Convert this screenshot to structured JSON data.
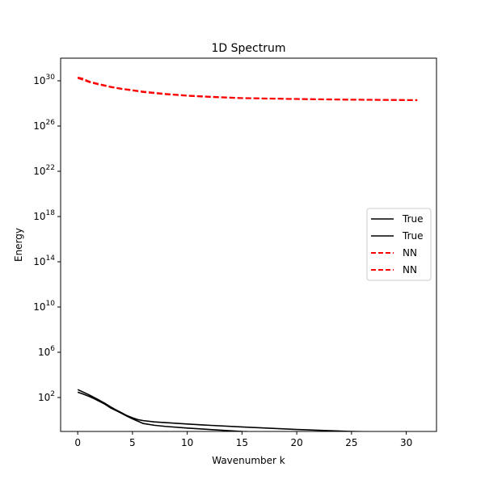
{
  "chart_data": {
    "type": "line",
    "title": "1D Spectrum",
    "xlabel": "Wavenumber k",
    "ylabel": "Energy",
    "xlim": [
      -1.56,
      32.76
    ],
    "ylim": [
      0.1,
      1e+32
    ],
    "yscale": "log",
    "x_ticks": [
      0,
      5,
      10,
      15,
      20,
      25,
      30
    ],
    "y_ticks": [
      {
        "value": 100.0,
        "base": "10",
        "exp": "2"
      },
      {
        "value": 1000000.0,
        "base": "10",
        "exp": "6"
      },
      {
        "value": 10000000000.0,
        "base": "10",
        "exp": "10"
      },
      {
        "value": 100000000000000.0,
        "base": "10",
        "exp": "14"
      },
      {
        "value": 1e+18,
        "base": "10",
        "exp": "18"
      },
      {
        "value": 1e+22,
        "base": "10",
        "exp": "22"
      },
      {
        "value": 1e+26,
        "base": "10",
        "exp": "26"
      },
      {
        "value": 1e+30,
        "base": "10",
        "exp": "30"
      }
    ],
    "grid": false,
    "legend_position": "center-right",
    "series": [
      {
        "name": "True",
        "color": "#000000",
        "style": "solid",
        "x": [
          0,
          0.5,
          1,
          1.5,
          2,
          2.5,
          3,
          3.5,
          4,
          4.5,
          5,
          5.5,
          6,
          7,
          8,
          10,
          12,
          15,
          20,
          25,
          31
        ],
        "y": [
          300,
          200,
          130,
          80,
          45,
          25,
          12,
          7,
          4,
          2.2,
          1.3,
          0.8,
          0.5,
          0.35,
          0.28,
          0.2,
          0.15,
          0.1,
          0.07,
          0.05,
          0.045
        ]
      },
      {
        "name": "True",
        "color": "#000000",
        "style": "solid",
        "x": [
          0,
          0.5,
          1,
          1.5,
          2,
          2.5,
          3,
          3.5,
          4,
          4.5,
          5,
          5.5,
          6,
          7,
          8,
          10,
          12,
          15,
          20,
          25,
          31
        ],
        "y": [
          500,
          300,
          180,
          100,
          55,
          30,
          15,
          8,
          4.5,
          2.5,
          1.6,
          1.1,
          0.9,
          0.7,
          0.6,
          0.45,
          0.35,
          0.25,
          0.15,
          0.1,
          0.08
        ]
      },
      {
        "name": "NN",
        "color": "#ff0000",
        "style": "dashed",
        "x": [
          0,
          0.5,
          1,
          2,
          3,
          4,
          5,
          6,
          8,
          10,
          12,
          15,
          20,
          25,
          31
        ],
        "y": [
          2e+30,
          1.5e+30,
          9e+29,
          5e+29,
          3e+29,
          2e+29,
          1.5e+29,
          1.1e+29,
          7e+28,
          5e+28,
          4e+28,
          3e+28,
          2.5e+28,
          2.2e+28,
          2e+28
        ]
      },
      {
        "name": "NN",
        "color": "#ff0000",
        "style": "dashed",
        "x": [
          0,
          0.5,
          1,
          2,
          3,
          4,
          5,
          6,
          8,
          10,
          12,
          15,
          20,
          25,
          31
        ],
        "y": [
          1.8e+30,
          1.2e+30,
          8e+29,
          4.5e+29,
          2.8e+29,
          1.9e+29,
          1.4e+29,
          1e+29,
          6.5e+28,
          4.7e+28,
          3.7e+28,
          2.9e+28,
          2.4e+28,
          2.1e+28,
          1.9e+28
        ]
      }
    ]
  }
}
